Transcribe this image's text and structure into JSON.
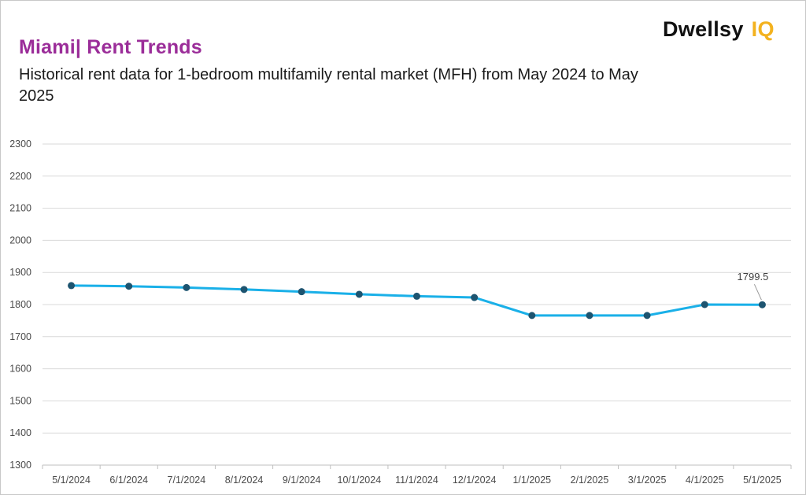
{
  "header": {
    "title": "Miami| Rent Trends",
    "subtitle": "Historical rent data for 1-bedroom multifamily rental market (MFH) from May 2024 to May 2025"
  },
  "logo": {
    "text": "Dwellsy",
    "accent": "IQ"
  },
  "colors": {
    "title": "#9b2d99",
    "line": "#1ab0e8",
    "marker": "#1d5470",
    "grid": "#d9d9d9",
    "logo_accent": "#f3b21f"
  },
  "chart_data": {
    "type": "line",
    "categories": [
      "5/1/2024",
      "6/1/2024",
      "7/1/2024",
      "8/1/2024",
      "9/1/2024",
      "10/1/2024",
      "11/1/2024",
      "12/1/2024",
      "1/1/2025",
      "2/1/2025",
      "3/1/2025",
      "4/1/2025",
      "5/1/2025"
    ],
    "series": [
      {
        "values": [
          1859,
          1857,
          1853,
          1847,
          1840,
          1832,
          1826,
          1822,
          1766,
          1766,
          1766,
          1800,
          1799.5
        ]
      }
    ],
    "ylim": [
      1300,
      2300
    ],
    "yticks": [
      1300,
      1400,
      1500,
      1600,
      1700,
      1800,
      1900,
      2000,
      2100,
      2200,
      2300
    ],
    "grid": true,
    "legend": "none",
    "annotations": [
      {
        "category": "5/1/2025",
        "text": "1799.5"
      }
    ]
  }
}
